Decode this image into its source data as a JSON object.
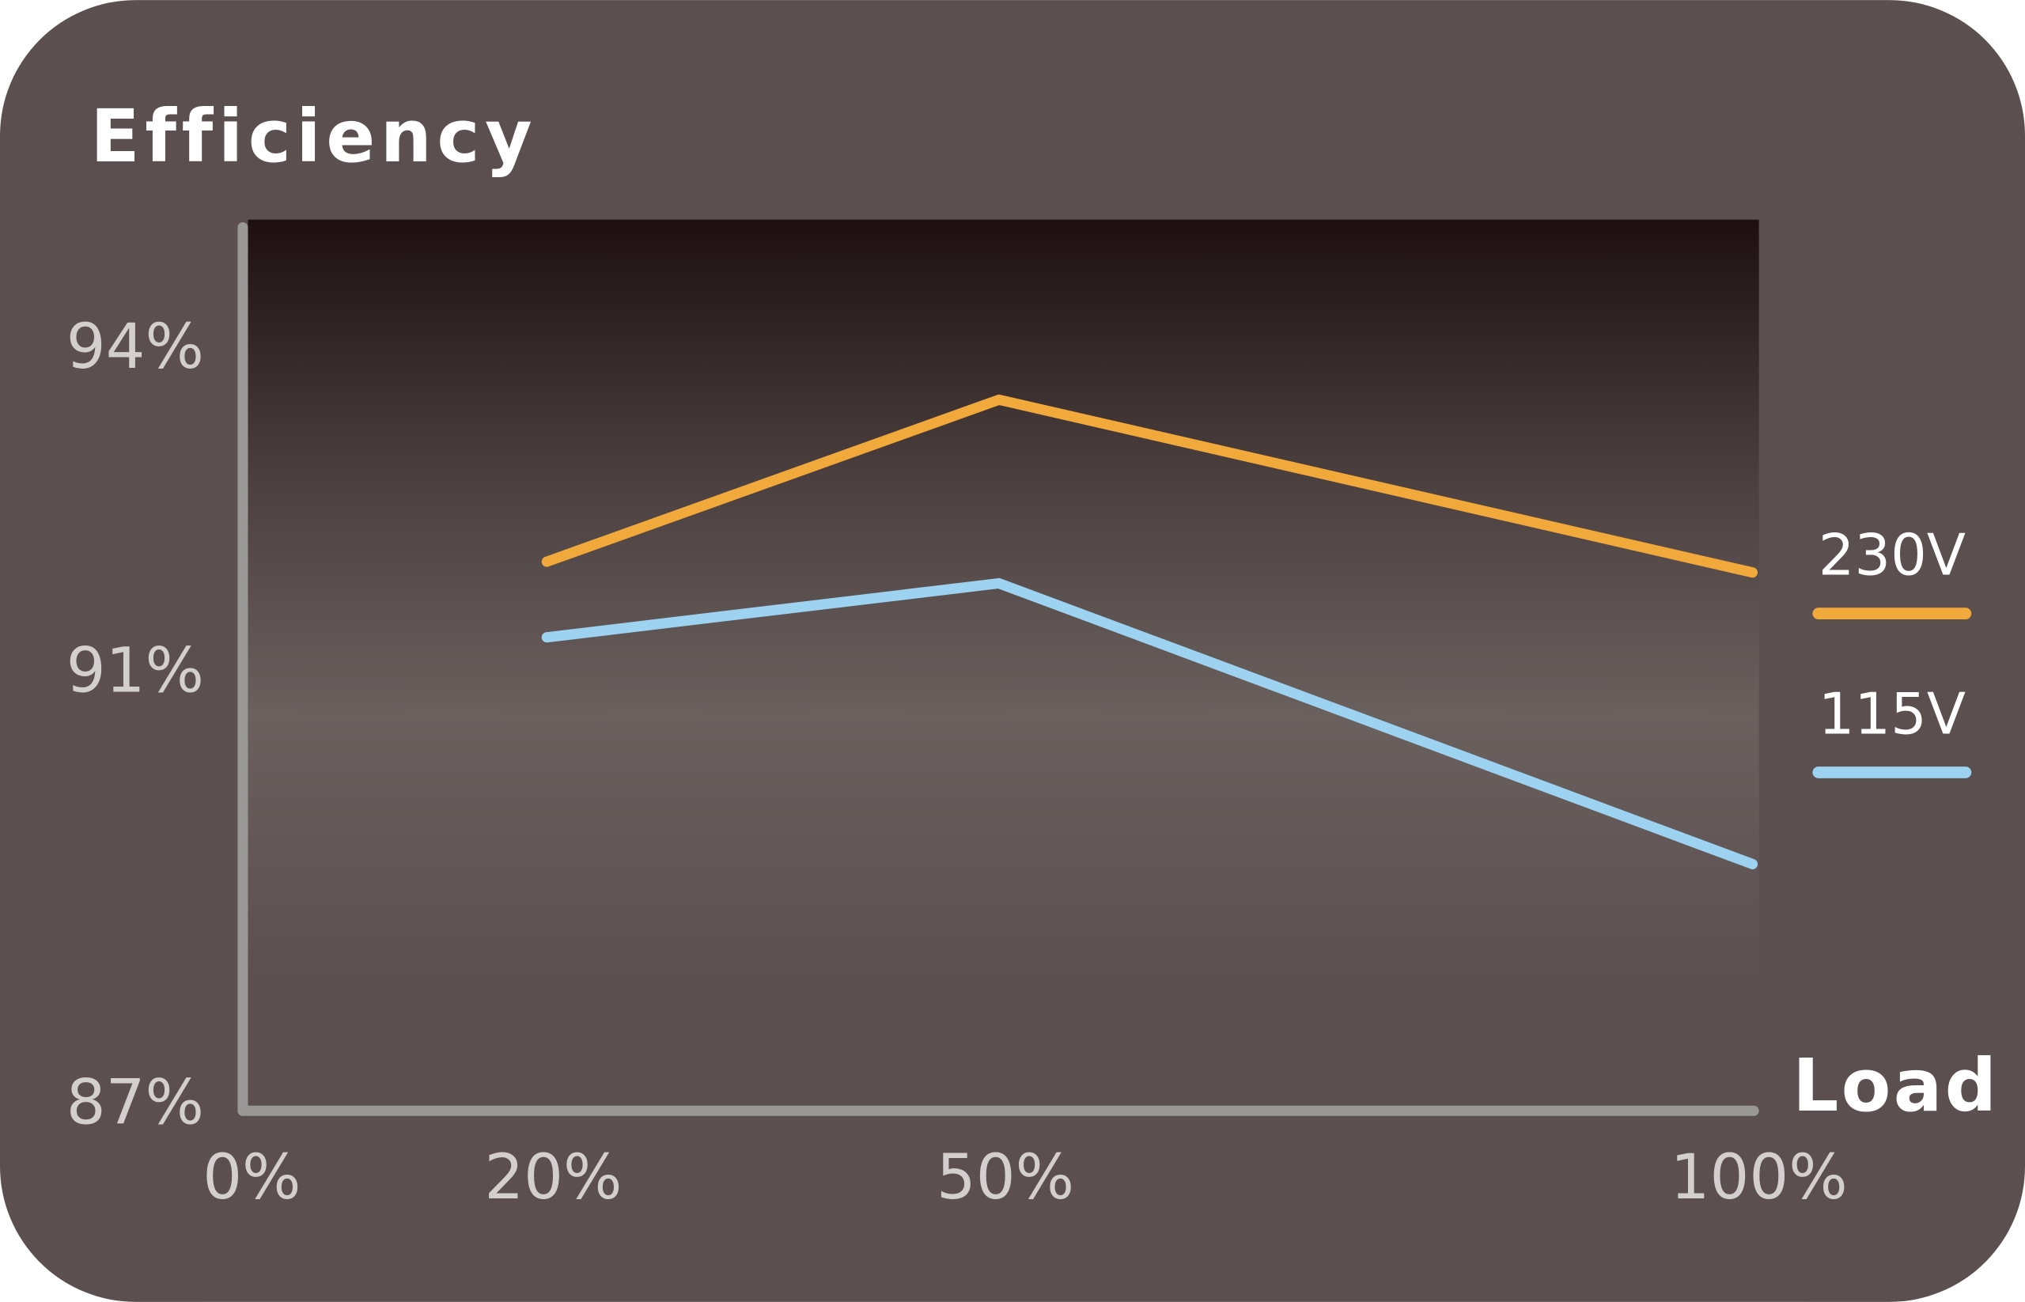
{
  "chart_data": {
    "type": "line",
    "title": "Efficiency",
    "x_label": "Load",
    "x": [
      20,
      50,
      100
    ],
    "xlim": [
      0,
      100
    ],
    "xticks": [
      {
        "value": 0,
        "label": "0%"
      },
      {
        "value": 20,
        "label": "20%"
      },
      {
        "value": 50,
        "label": "50%"
      },
      {
        "value": 100,
        "label": "100%"
      }
    ],
    "ylim": [
      87,
      95
    ],
    "yticks": [
      {
        "value": 87,
        "label": "87%"
      },
      {
        "value": 91,
        "label": "91%"
      },
      {
        "value": 94,
        "label": "94%"
      }
    ],
    "series": [
      {
        "name": "230V",
        "color": "#f2a93b",
        "values": [
          92,
          93.5,
          91.9
        ]
      },
      {
        "name": "115V",
        "color": "#9dd3f0",
        "values": [
          91.3,
          91.8,
          89.2
        ]
      }
    ],
    "grid": false,
    "legend": "right"
  }
}
